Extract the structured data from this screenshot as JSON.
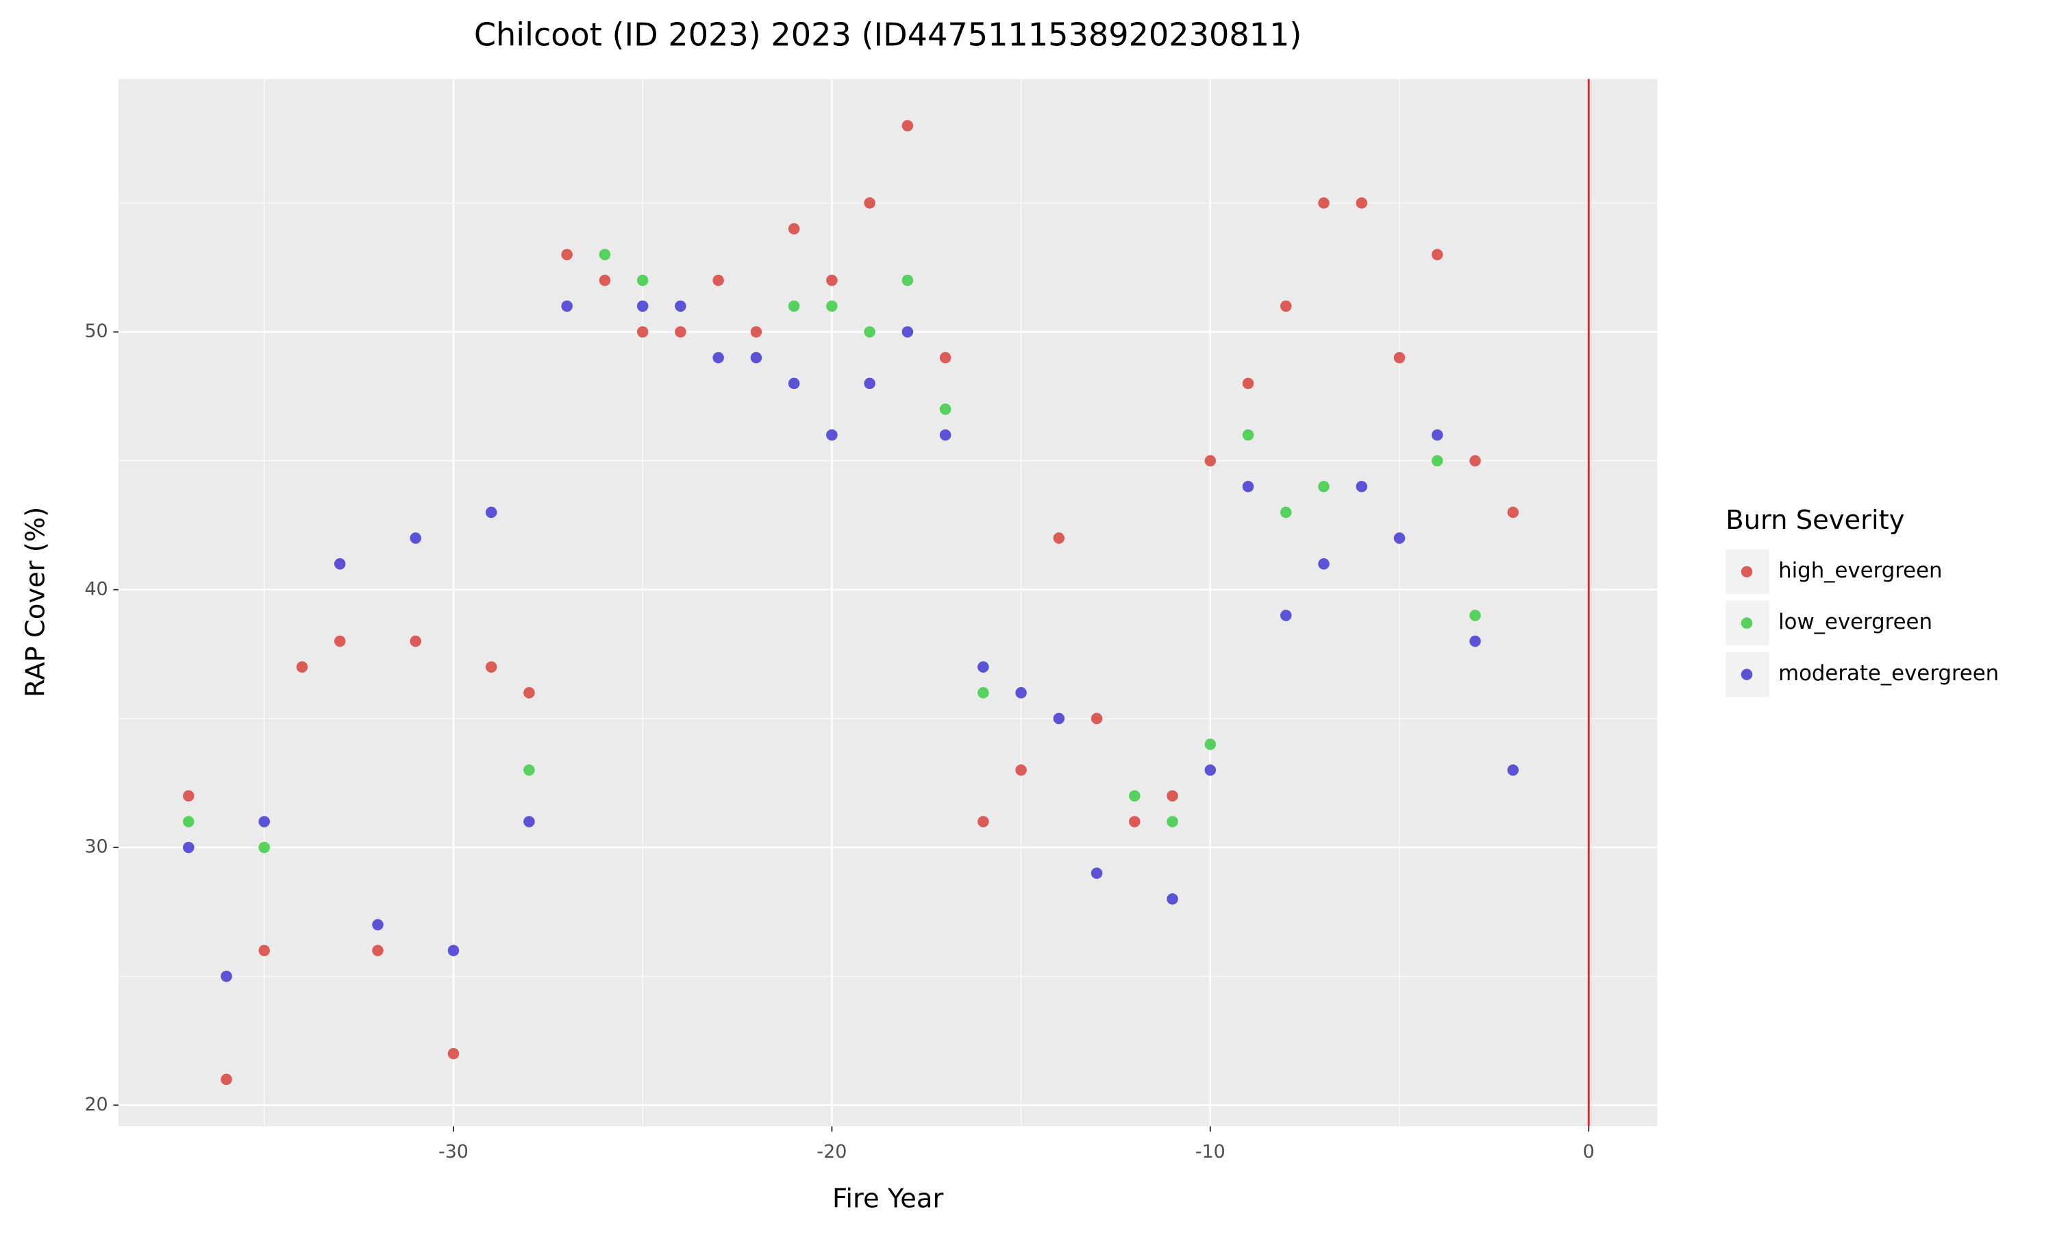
{
  "chart_data": {
    "type": "scatter",
    "title": "Chilcoot (ID 2023) 2023 (ID44751115389202308​11)",
    "x_label": "Fire Year",
    "y_label": "RAP Cover (%)",
    "legend_title": "Burn Severity",
    "legend_position": "right",
    "xlim": [
      -38.85,
      1.81
    ],
    "ylim": [
      19.18,
      59.81
    ],
    "xticks": [
      -30,
      -20,
      -10,
      0
    ],
    "yticks": [
      20,
      30,
      40,
      50
    ],
    "x_minor_ticks": [
      -35,
      -25,
      -15,
      -5
    ],
    "y_minor_ticks": [
      25,
      35,
      45,
      55
    ],
    "grid": true,
    "vline": 0,
    "vline_color": "#e3232b",
    "series": [
      {
        "name": "high_evergreen",
        "color": "#db5b56",
        "x": [
          -37,
          -36,
          -35,
          -34,
          -33,
          -32,
          -31,
          -30,
          -29,
          -28,
          -27,
          -26,
          -25,
          -24,
          -23,
          -22,
          -21,
          -20,
          -19,
          -18,
          -17,
          -16,
          -15,
          -14,
          -13,
          -12,
          -11,
          -10,
          -9,
          -8,
          -7,
          -6,
          -5,
          -4,
          -3,
          -2
        ],
        "y": [
          32,
          21,
          26,
          37,
          38,
          26,
          38,
          22,
          37,
          36,
          53,
          52,
          50,
          50,
          52,
          50,
          54,
          52,
          55,
          58,
          49,
          31,
          33,
          42,
          35,
          31,
          32,
          45,
          48,
          51,
          55,
          55,
          49,
          53,
          45,
          43
        ]
      },
      {
        "name": "low_evergreen",
        "color": "#57d15e",
        "x": [
          -37,
          -35,
          -28,
          -26,
          -25,
          -21,
          -20,
          -19,
          -18,
          -17,
          -16,
          -12,
          -11,
          -10,
          -9,
          -8,
          -7,
          -4,
          -3
        ],
        "y": [
          31,
          30,
          33,
          53,
          52,
          51,
          51,
          50,
          52,
          47,
          36,
          32,
          31,
          34,
          46,
          43,
          44,
          45,
          39
        ]
      },
      {
        "name": "moderate_evergreen",
        "color": "#5b52d6",
        "x": [
          -37,
          -36,
          -35,
          -33,
          -32,
          -31,
          -30,
          -29,
          -28,
          -27,
          -25,
          -24,
          -23,
          -22,
          -21,
          -20,
          -19,
          -18,
          -17,
          -16,
          -15,
          -14,
          -13,
          -11,
          -10,
          -9,
          -8,
          -7,
          -6,
          -5,
          -4,
          -3,
          -2
        ],
        "y": [
          30,
          25,
          31,
          41,
          27,
          42,
          26,
          43,
          31,
          51,
          51,
          51,
          49,
          49,
          48,
          46,
          48,
          50,
          46,
          37,
          36,
          35,
          29,
          28,
          33,
          44,
          39,
          41,
          44,
          42,
          46,
          38,
          33
        ]
      }
    ]
  }
}
